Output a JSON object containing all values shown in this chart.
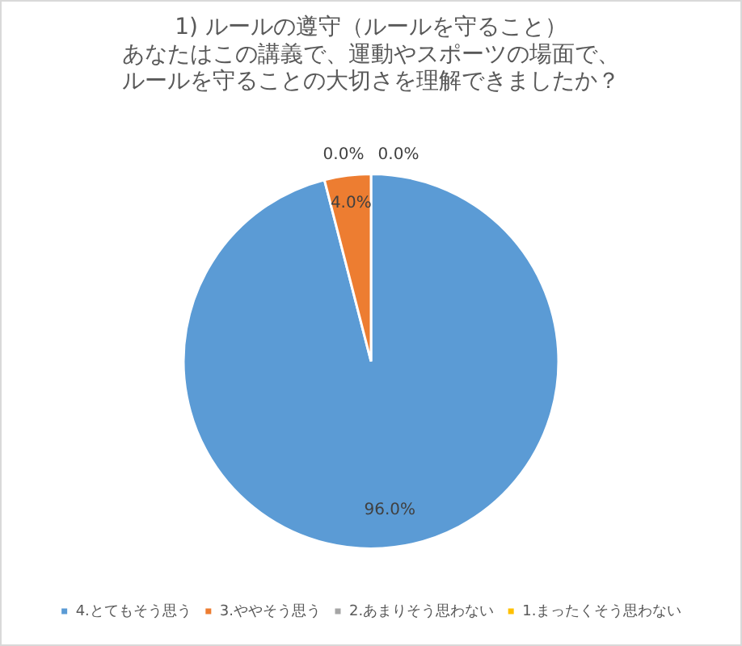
{
  "chart_data": {
    "type": "pie",
    "title": "1) ルールの遵守（ルールを守ること）あなたはこの講義で、運動やスポーツの場面で、ルールを守ることの大切さを理解できましたか？",
    "categories": [
      "4.とてもそう思う",
      "3.ややそう思う",
      "2.あまりそう思わない",
      "1.まったくそう思わない"
    ],
    "values": [
      96,
      4,
      0,
      0
    ],
    "colors": [
      "#5b9bd5",
      "#ed7d31",
      "#a5a5a5",
      "#ffc000"
    ],
    "value_labels": [
      "96.0%",
      "4.0%",
      "0.0%",
      "0.0%"
    ],
    "legend": "bottom"
  }
}
